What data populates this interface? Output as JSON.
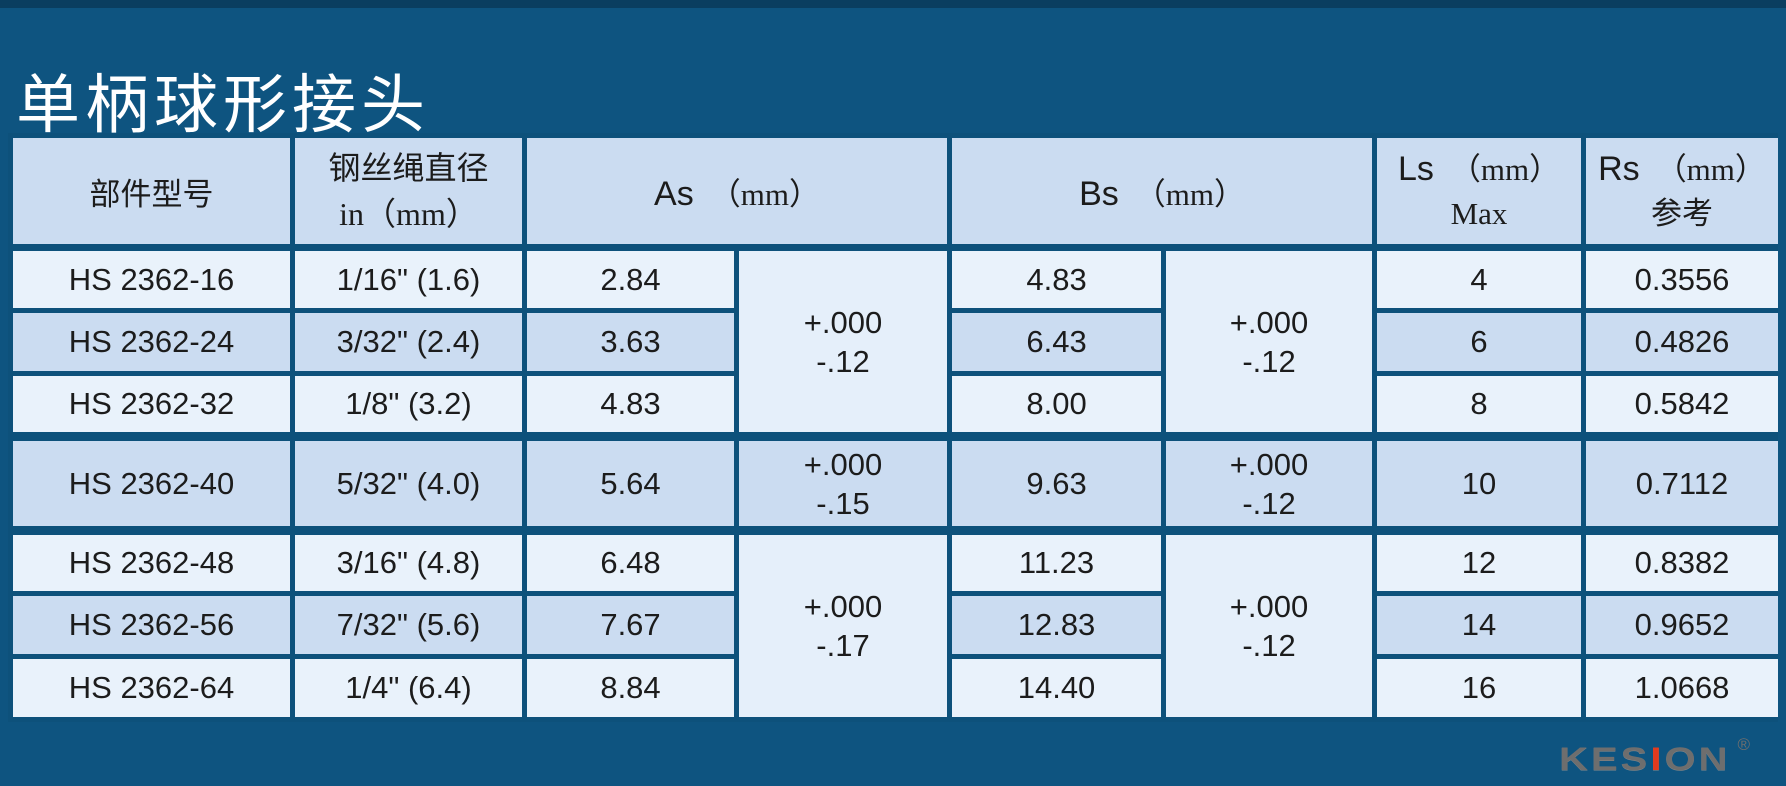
{
  "page": {
    "title": "单柄球形接头"
  },
  "table": {
    "headers": {
      "part": "部件型号",
      "diameter_line1": "钢丝绳直径",
      "diameter_line2": "in（mm）",
      "as_label": "As",
      "as_unit": "（mm）",
      "bs_label": "Bs",
      "bs_unit": "（mm）",
      "ls_label": "Ls",
      "ls_unit": "（mm）",
      "ls_line2": "Max",
      "rs_label": "Rs",
      "rs_unit": "（mm）",
      "rs_line2": "参考"
    },
    "groups": [
      {
        "as_tol": [
          "+.000",
          "-.12"
        ],
        "bs_tol": [
          "+.000",
          "-.12"
        ],
        "rows": [
          {
            "part": "HS 2362-16",
            "dia": "1/16\" (1.6)",
            "as": "2.84",
            "bs": "4.83",
            "ls": "4",
            "rs": "0.3556"
          },
          {
            "part": "HS 2362-24",
            "dia": "3/32\" (2.4)",
            "as": "3.63",
            "bs": "6.43",
            "ls": "6",
            "rs": "0.4826"
          },
          {
            "part": "HS 2362-32",
            "dia": "1/8\" (3.2)",
            "as": "4.83",
            "bs": "8.00",
            "ls": "8",
            "rs": "0.5842"
          }
        ]
      },
      {
        "as_tol": [
          "+.000",
          "-.15"
        ],
        "bs_tol": [
          "+.000",
          "-.12"
        ],
        "rows": [
          {
            "part": "HS 2362-40",
            "dia": "5/32\" (4.0)",
            "as": "5.64",
            "bs": "9.63",
            "ls": "10",
            "rs": "0.7112"
          }
        ]
      },
      {
        "as_tol": [
          "+.000",
          "-.17"
        ],
        "bs_tol": [
          "+.000",
          "-.12"
        ],
        "rows": [
          {
            "part": "HS 2362-48",
            "dia": "3/16\" (4.8)",
            "as": "6.48",
            "bs": "11.23",
            "ls": "12",
            "rs": "0.8382"
          },
          {
            "part": "HS 2362-56",
            "dia": "7/32\" (5.6)",
            "as": "7.67",
            "bs": "12.83",
            "ls": "14",
            "rs": "0.9652"
          },
          {
            "part": "HS 2362-64",
            "dia": "1/4\" (6.4)",
            "as": "8.84",
            "bs": "14.40",
            "ls": "16",
            "rs": "1.0668"
          }
        ]
      }
    ]
  },
  "logo": {
    "text": "KESION",
    "registered": "®",
    "accent_letter_index": 3
  },
  "colors": {
    "background": "#0E5480",
    "top_stripe": "#0A3E60",
    "grid_line": "#0D517B",
    "header_bg": "#CBDCF1",
    "row_light": "#E9F2FB",
    "row_mid": "#CBDCF1",
    "tolerance_cell": "#E5EFFA",
    "title_text": "#FFFFFF",
    "cell_text": "#1C1C1C",
    "logo_gray": "#6E6E6E",
    "logo_red": "#E23A1E"
  }
}
